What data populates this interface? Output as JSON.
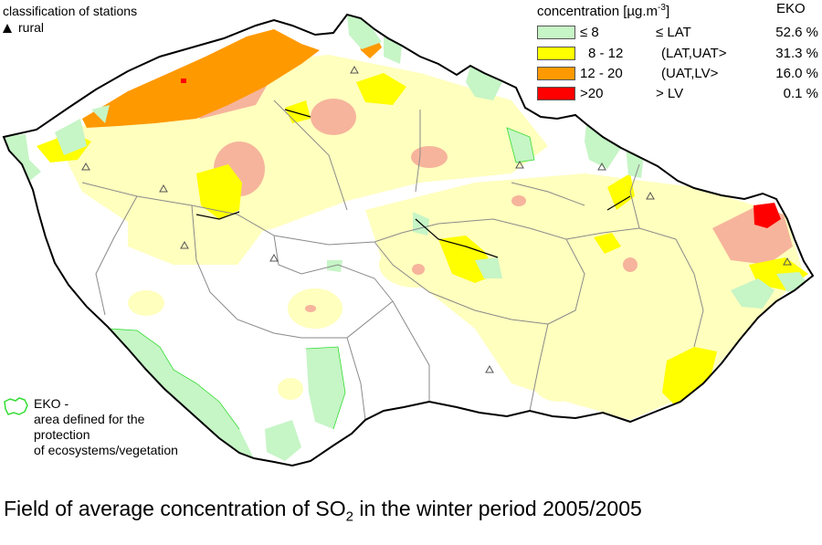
{
  "stations": {
    "title": "classification of stations",
    "rural": "rural"
  },
  "legend": {
    "title_prefix": "concentration [µg.m",
    "title_exp": "-3",
    "title_suffix": "]",
    "eko_header": "EKO",
    "rows": [
      {
        "range": "≤ 8",
        "cls": "≤ LAT",
        "pct": "52.6 %",
        "color": "#c6f5c6"
      },
      {
        "range": "8 - 12",
        "cls": "(LAT,UAT>",
        "pct": "31.3 %",
        "color": "#ffff00"
      },
      {
        "range": "12 - 20",
        "cls": "(UAT,LV>",
        "pct": "16.0 %",
        "color": "#ff9900"
      },
      {
        "range": ">20",
        "cls": "> LV",
        "pct": "0.1 %",
        "color": "#ff0000"
      }
    ]
  },
  "eko": {
    "label": "EKO -",
    "desc1": "area defined for the",
    "desc2": "protection",
    "desc3": "of ecosystems/vegetation"
  },
  "caption": {
    "pre": "Field of average concentration of SO",
    "sub": "2",
    "post": " in the winter period 2005/2005"
  },
  "colors": {
    "pale_yellow": "#ffffbe",
    "yellow": "#ffff00",
    "salmon": "#f6b49c",
    "orange": "#ff9900",
    "red": "#ff0000",
    "eko_green": "#c6f5c6",
    "border": "#000000",
    "regions": "#8a8a8a",
    "eko_outline": "#33dd33"
  }
}
